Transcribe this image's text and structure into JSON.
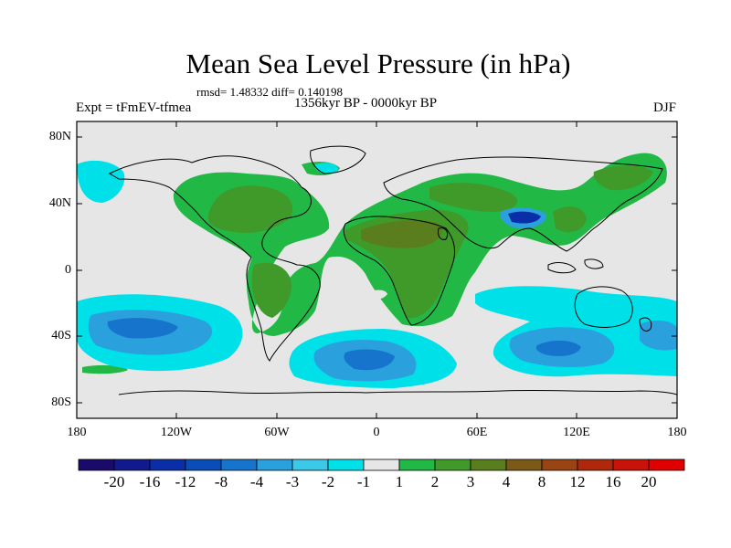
{
  "title": "Mean Sea Level Pressure (in hPa)",
  "stats": "rmsd= 1.48332 diff= 0.140198",
  "experiment": "Expt = tFmEV-tfmea",
  "period": "1356kyr BP - 0000kyr BP",
  "season": "DJF",
  "y_labels": [
    "80N",
    "40N",
    "0",
    "40S",
    "80S"
  ],
  "x_labels": [
    "180",
    "120W",
    "60W",
    "0",
    "60E",
    "120E",
    "180"
  ],
  "colorbar": {
    "labels": [
      "-20",
      "-16",
      "-12",
      "-8",
      "-4",
      "-3",
      "-2",
      "-1",
      "1",
      "2",
      "3",
      "4",
      "8",
      "12",
      "16",
      "20"
    ],
    "colors": [
      "#1a0a6b",
      "#101a8c",
      "#0a2ea8",
      "#0a4cb8",
      "#1674cc",
      "#2aa0dc",
      "#3cc8e8",
      "#00e0e8",
      "#e6e6e6",
      "#22b845",
      "#3f9a2a",
      "#5a7d1e",
      "#7b5a18",
      "#9a4414",
      "#b0280c",
      "#c81408",
      "#e00000"
    ]
  },
  "colors": {
    "background": "#e6e6e6",
    "coast": "#000000"
  }
}
